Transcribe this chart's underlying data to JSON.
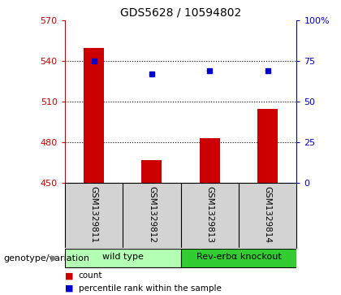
{
  "title": "GDS5628 / 10594802",
  "samples": [
    "GSM1329811",
    "GSM1329812",
    "GSM1329813",
    "GSM1329814"
  ],
  "bar_values": [
    550,
    467,
    483,
    505
  ],
  "bar_baseline": 450,
  "bar_color": "#cc0000",
  "dot_percentiles": [
    75,
    67,
    69,
    69
  ],
  "dot_color": "#0000cc",
  "ylim_left": [
    450,
    570
  ],
  "ylim_right": [
    0,
    100
  ],
  "yticks_left": [
    450,
    480,
    510,
    540,
    570
  ],
  "yticks_right": [
    0,
    25,
    50,
    75,
    100
  ],
  "ytick_labels_right": [
    "0",
    "25",
    "50",
    "75",
    "100%"
  ],
  "left_tick_color": "#cc0000",
  "right_tick_color": "#0000cc",
  "groups": [
    {
      "label": "wild type",
      "samples": [
        0,
        1
      ],
      "color": "#b3ffb3"
    },
    {
      "label": "Rev-erbα knockout",
      "samples": [
        2,
        3
      ],
      "color": "#33cc33"
    }
  ],
  "group_row_label": "genotype/variation",
  "legend_items": [
    {
      "color": "#cc0000",
      "label": "count"
    },
    {
      "color": "#0000cc",
      "label": "percentile rank within the sample"
    }
  ],
  "bg_color": "#ffffff",
  "plot_bg_color": "#ffffff",
  "grid_color": "#000000",
  "sample_bg_color": "#d3d3d3"
}
